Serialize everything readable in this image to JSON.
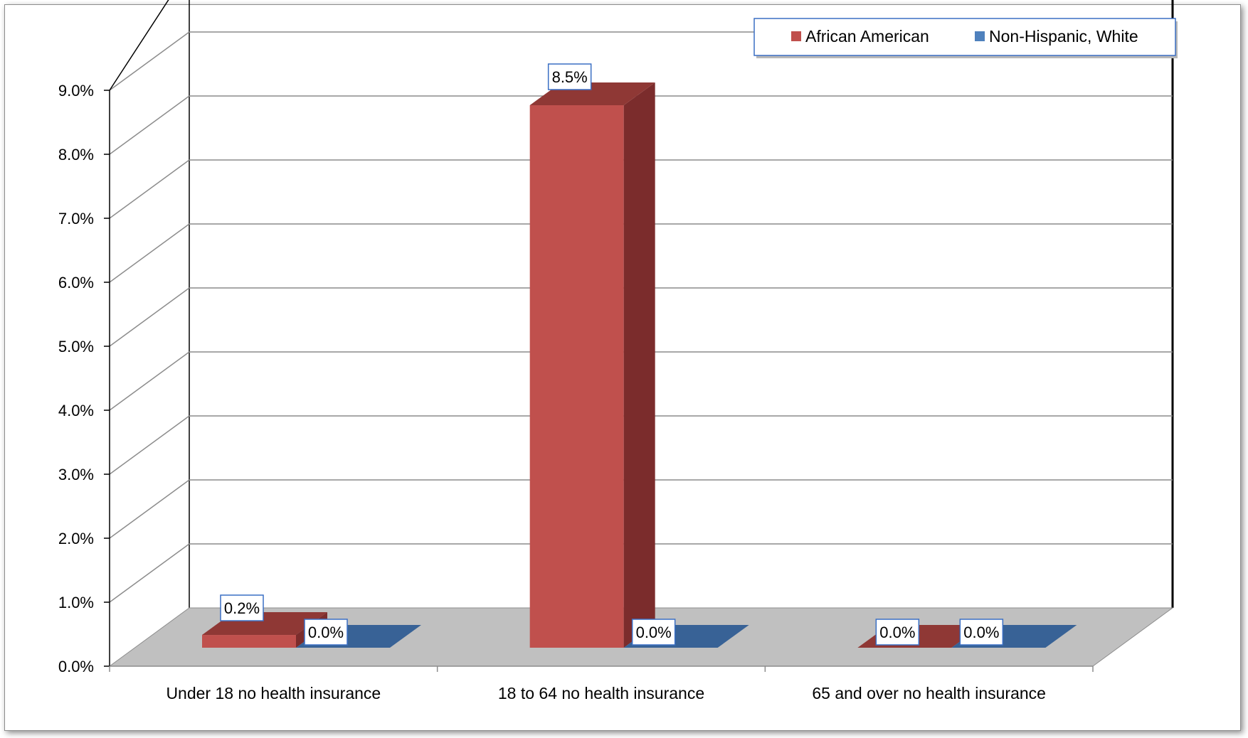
{
  "chart_data": {
    "type": "bar",
    "categories": [
      "Under 18  no health insurance",
      "18 to 64 no health insurance",
      "65 and over no health insurance"
    ],
    "series": [
      {
        "name": "African American",
        "values": [
          0.2,
          8.5,
          0.0
        ],
        "color": "#c0504d",
        "side_color": "#7b2c2c",
        "top_color": "#8f3835"
      },
      {
        "name": "Non-Hispanic, White",
        "values": [
          0.0,
          0.0,
          0.0
        ],
        "color": "#4f81bd",
        "side_color": "#2c4f7a",
        "top_color": "#386296"
      }
    ],
    "data_labels": [
      [
        "0.2%",
        "8.5%",
        "0.0%"
      ],
      [
        "0.0%",
        "0.0%",
        "0.0%"
      ]
    ],
    "ylim": [
      0,
      9
    ],
    "yticks": [
      "0.0%",
      "1.0%",
      "2.0%",
      "3.0%",
      "4.0%",
      "5.0%",
      "6.0%",
      "7.0%",
      "8.0%",
      "9.0%"
    ],
    "grid": true,
    "legend_position": "top-right",
    "floor_color": "#c0c0c0"
  }
}
